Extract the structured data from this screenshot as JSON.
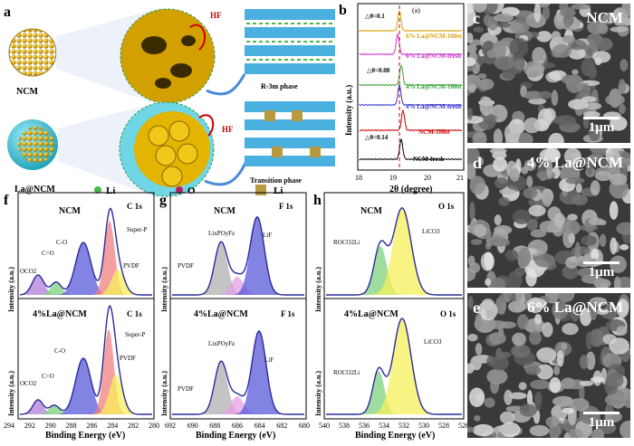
{
  "panel_letters": {
    "a": "a",
    "b": "b",
    "c": "c",
    "d": "d",
    "e": "e",
    "f": "f",
    "g": "g",
    "h": "h"
  },
  "panel_a": {
    "ncm_label": "NCM",
    "la_label": "La@NCM",
    "hf1": "HF",
    "hf2": "HF",
    "phase1": "R-3m phase",
    "phase2": "Transition phase"
  },
  "legend": {
    "li1": "Li",
    "o": "O",
    "li2": "Li"
  },
  "panel_b": {
    "tag": "(a)",
    "ylabel": "Intensity (a.u.)",
    "xlabel": "2θ (degree)",
    "ticks": [
      "18",
      "19",
      "20",
      "21"
    ],
    "d1": "△θ=0.1",
    "d2": "△θ=0.08",
    "d3": "△θ=0.14",
    "traces": [
      "6% La@NCM-100st",
      "6% La@NCM-fresh",
      "4% La@NCM-100st",
      "4% La@NCM-fresh",
      "NCM-100st",
      "NCM-fresh"
    ]
  },
  "sem": {
    "c_title": "NCM",
    "d_title": "4% La@NCM",
    "e_title": "6% La@NCM",
    "scale": "1μm"
  },
  "xps": {
    "ylabel": "Intensity (a.u.)",
    "xlabel": "Binding Energy (eV)",
    "ncm": "NCM",
    "la": "4%La@NCM",
    "c1s": "C 1s",
    "f1s": "F 1s",
    "o1s": "O 1s",
    "c_ticks": [
      "294",
      "292",
      "290",
      "288",
      "286",
      "284",
      "282",
      "280"
    ],
    "f_ticks": [
      "692",
      "690",
      "688",
      "686",
      "684",
      "682",
      "680"
    ],
    "o_ticks": [
      "540",
      "538",
      "536",
      "534",
      "532",
      "530",
      "528",
      "526"
    ],
    "c_labels": {
      "oco2": "OCO2",
      "c_eq_o": "C=O",
      "c_o": "C-O",
      "superp": "Super-P",
      "pvdf": "PVDF"
    },
    "f_labels": {
      "lipof": "LixPOyFz",
      "lif": "LiF",
      "pvdf": "PVDF"
    },
    "o_labels": {
      "roco2li": "ROCO2Li",
      "lico3": "LiCO3"
    }
  },
  "colors": {
    "red": "#f08080",
    "yellow": "#f5f05a",
    "green": "#7fd17f",
    "purple": "#b37fd9",
    "blue": "#5a5ad9",
    "gray": "#b0b0b0",
    "pink": "#e6a0e6",
    "fit": "#2a2a9a"
  }
}
